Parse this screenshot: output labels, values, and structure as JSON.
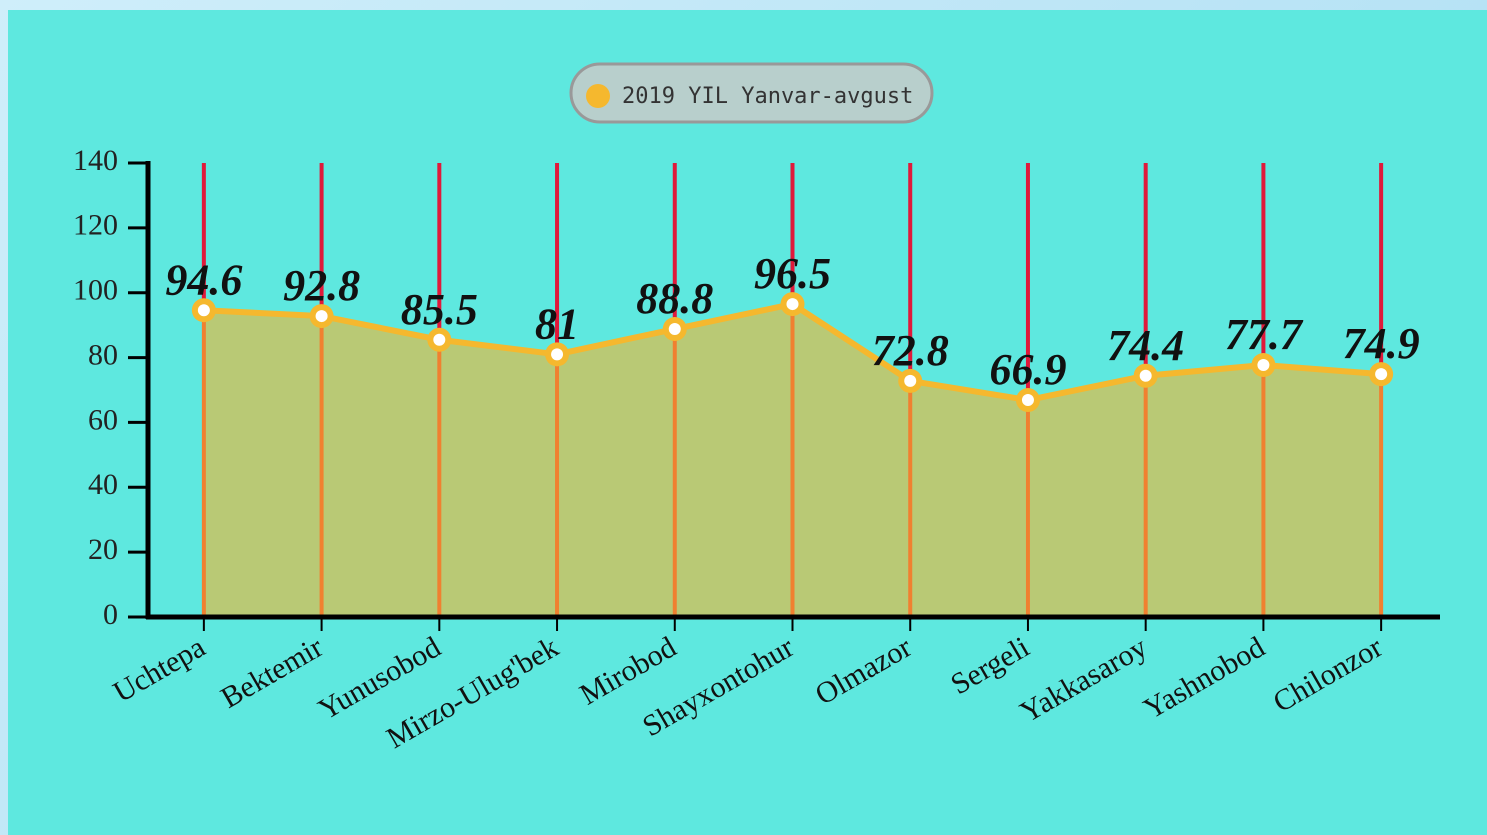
{
  "chart_data": {
    "type": "line",
    "categories": [
      "Uchtepa",
      "Bektemir",
      "Yunusobod",
      "Mirzo-Ulug'bek",
      "Mirobod",
      "Shayxontohur",
      "Olmazor",
      "Sergeli",
      "Yakkasaroy",
      "Yashnobod",
      "Chilonzor"
    ],
    "series": [
      {
        "name": "2019 YIL Yanvar-avgust",
        "color": "#f5b82e",
        "values": [
          94.6,
          92.8,
          85.5,
          81,
          88.8,
          96.5,
          72.8,
          66.9,
          74.4,
          77.7,
          74.9
        ]
      }
    ],
    "area_color": "#b9c975",
    "ylim": [
      0,
      140
    ],
    "yticks": [
      0,
      20,
      40,
      60,
      80,
      100,
      120,
      140
    ]
  }
}
